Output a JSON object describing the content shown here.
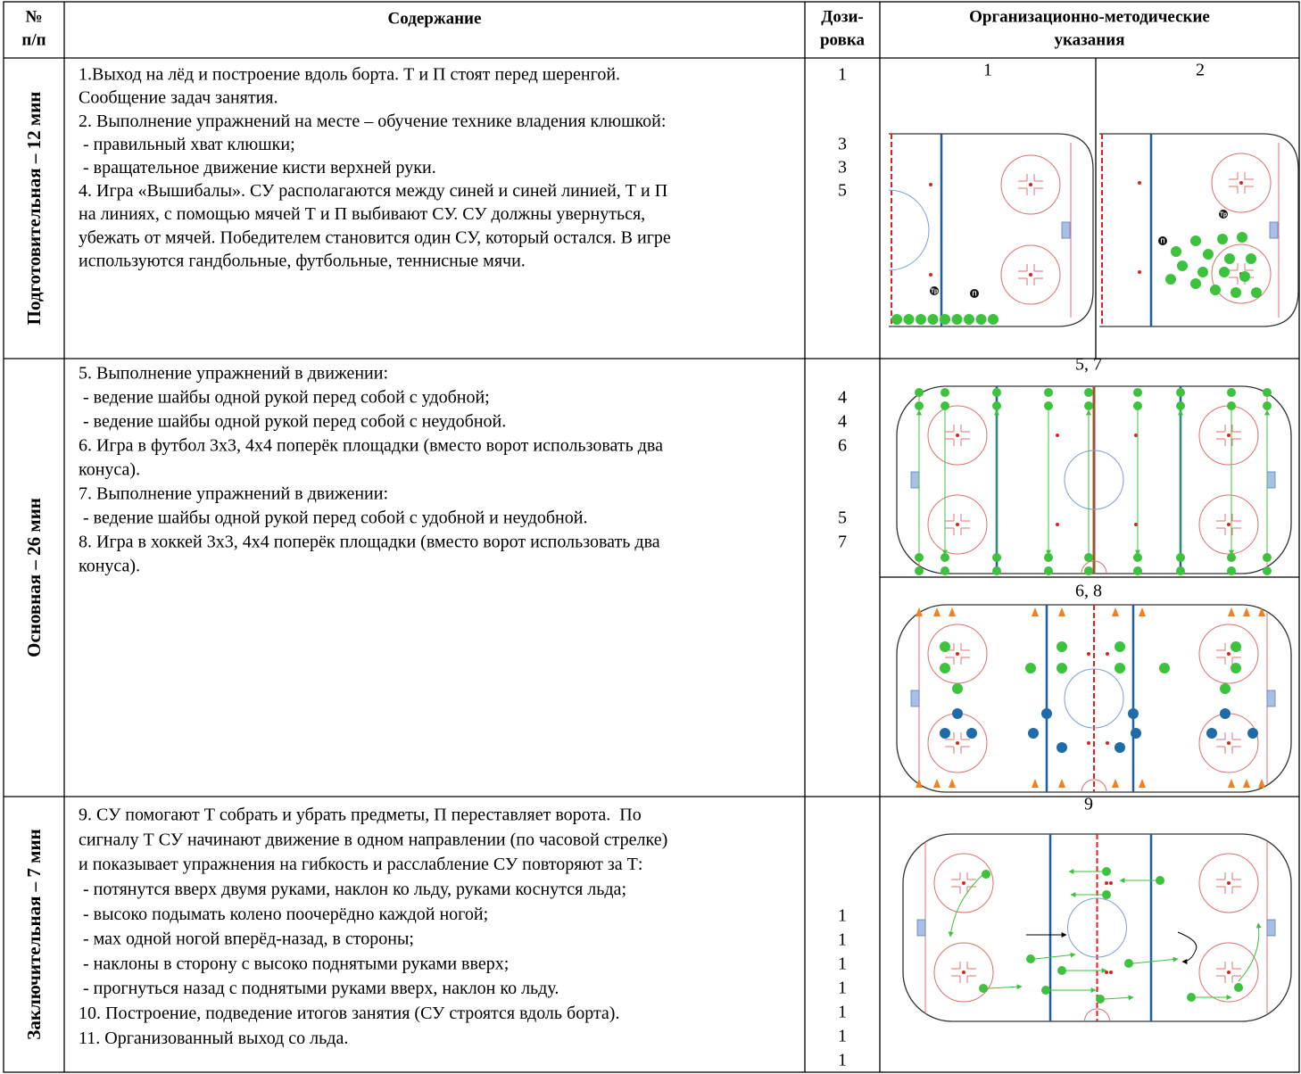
{
  "table": {
    "header": [
      [
        "№",
        "п/п"
      ],
      [
        "Содержание"
      ],
      [
        "Дози-",
        "ровка"
      ],
      [
        "Организационно-методические",
        "указания"
      ]
    ],
    "rows": [
      {
        "section": "Подготовительная – 12 мин",
        "content": [
          "1.Выход на лёд и построение вдоль борта. Т и П стоят перед шеренгой.",
          "Сообщение задач занятия.",
          "2. Выполнение упражнений на месте – обучение технике владения клюшкой:",
          " - правильный хват клюшки;",
          " - вращательное движение кисти верхней руки.",
          "4. Игра «Вышибалы». СУ располагаются между синей и синей линией, Т и П",
          "на линиях, с помощью мячей Т и П выбивают СУ. СУ должны увернуться,",
          "убежать от мячей. Победителем становится один СУ, который остался. В игре",
          "используются гандбольные, футбольные, теннисные мячи."
        ],
        "dosage": [
          "1",
          "3",
          "3",
          "5"
        ],
        "diagrams": [
          {
            "label": "1",
            "markers": [
              "Тр",
              "П"
            ]
          },
          {
            "label": "2",
            "markers": [
              "Тр",
              "П"
            ]
          }
        ]
      },
      {
        "section": "Основная – 26 мин",
        "content": [
          "5. Выполнение упражнений в движении:",
          " - ведение шайбы одной рукой перед собой с удобной;",
          " - ведение шайбы одной рукой перед собой с неудобной.",
          "6. Игра в футбол 3х3, 4х4 поперёк площадки (вместо ворот использовать два",
          "конуса).",
          "7. Выполнение упражнений в движении:",
          " - ведение шайбы одной рукой перед собой с удобной и неудобной.",
          "8. Игра в хоккей 3х3, 4х4 поперёк площадки (вместо ворот использовать два",
          "конуса)."
        ],
        "dosage": [
          "4",
          "4",
          "6",
          "5",
          "7"
        ],
        "diagrams": [
          {
            "label": "5, 7"
          },
          {
            "label": "6, 8"
          }
        ]
      },
      {
        "section": "Заключительная – 7 мин",
        "content": [
          "9. СУ помогают Т собрать и убрать предметы, П переставляет ворота.  По",
          "сигналу Т СУ начинают движение в одном направлении (по часовой стрелке)",
          "и показывает упражнения на гибкость и расслабление СУ повторяют за Т:",
          " - потянутся вверх двумя руками, наклон ко льду, руками коснутся льда;",
          " - высоко подымать колено поочерёдно каждой ногой;",
          " - мах одной ногой вперёд-назад, в стороны;",
          " - наклоны в сторону с высоко поднятыми руками вверх;",
          " - прогнуться назад с поднятыми руками вверх, наклон ко льду.",
          "10. Построение, подведение итогов занятия (СУ строятся вдоль борта).",
          "11. Организованный выход со льда."
        ],
        "dosage": [
          "1",
          "1",
          "1",
          "1",
          "1",
          "1",
          "1"
        ],
        "diagrams": [
          {
            "label": "9"
          }
        ]
      }
    ]
  }
}
